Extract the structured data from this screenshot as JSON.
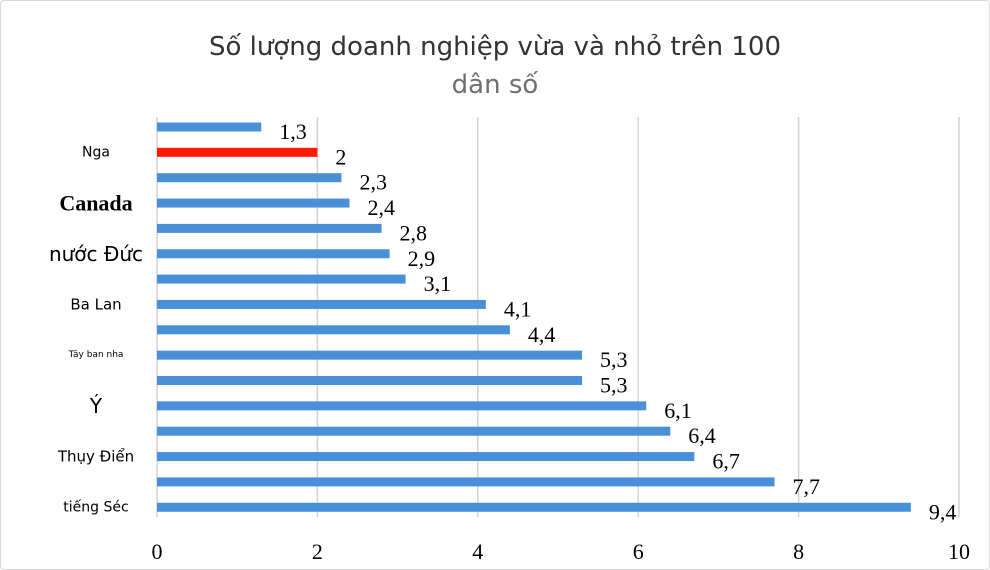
{
  "chart_data": {
    "type": "bar",
    "orientation": "horizontal",
    "title": "Số lượng doanh nghiệp vừa và nhỏ trên 100",
    "subtitle": "dân số",
    "xlim": [
      0,
      10
    ],
    "x_ticks": [
      "0",
      "2",
      "4",
      "6",
      "8",
      "10"
    ],
    "grid": true,
    "bar_color": "#4a90d9",
    "highlight_color": "#ff1a00",
    "bars": [
      {
        "value": 1.3,
        "label": "1,3",
        "category": ""
      },
      {
        "value": 2.0,
        "label": "2",
        "category": "Nga",
        "highlight": true
      },
      {
        "value": 2.3,
        "label": "2,3",
        "category": ""
      },
      {
        "value": 2.4,
        "label": "2,4",
        "category": "Canada"
      },
      {
        "value": 2.8,
        "label": "2,8",
        "category": ""
      },
      {
        "value": 2.9,
        "label": "2,9",
        "category": "nước Đức"
      },
      {
        "value": 3.1,
        "label": "3,1",
        "category": ""
      },
      {
        "value": 4.1,
        "label": "4,1",
        "category": "Ba Lan"
      },
      {
        "value": 4.4,
        "label": "4,4",
        "category": ""
      },
      {
        "value": 5.3,
        "label": "5,3",
        "category": "Tây ban nha"
      },
      {
        "value": 5.3,
        "label": "5,3",
        "category": ""
      },
      {
        "value": 6.1,
        "label": "6,1",
        "category": "Ý"
      },
      {
        "value": 6.4,
        "label": "6,4",
        "category": ""
      },
      {
        "value": 6.7,
        "label": "6,7",
        "category": "Thụy Điển"
      },
      {
        "value": 7.7,
        "label": "7,7",
        "category": ""
      },
      {
        "value": 9.4,
        "label": "9,4",
        "category": "tiếng Séc"
      }
    ]
  }
}
